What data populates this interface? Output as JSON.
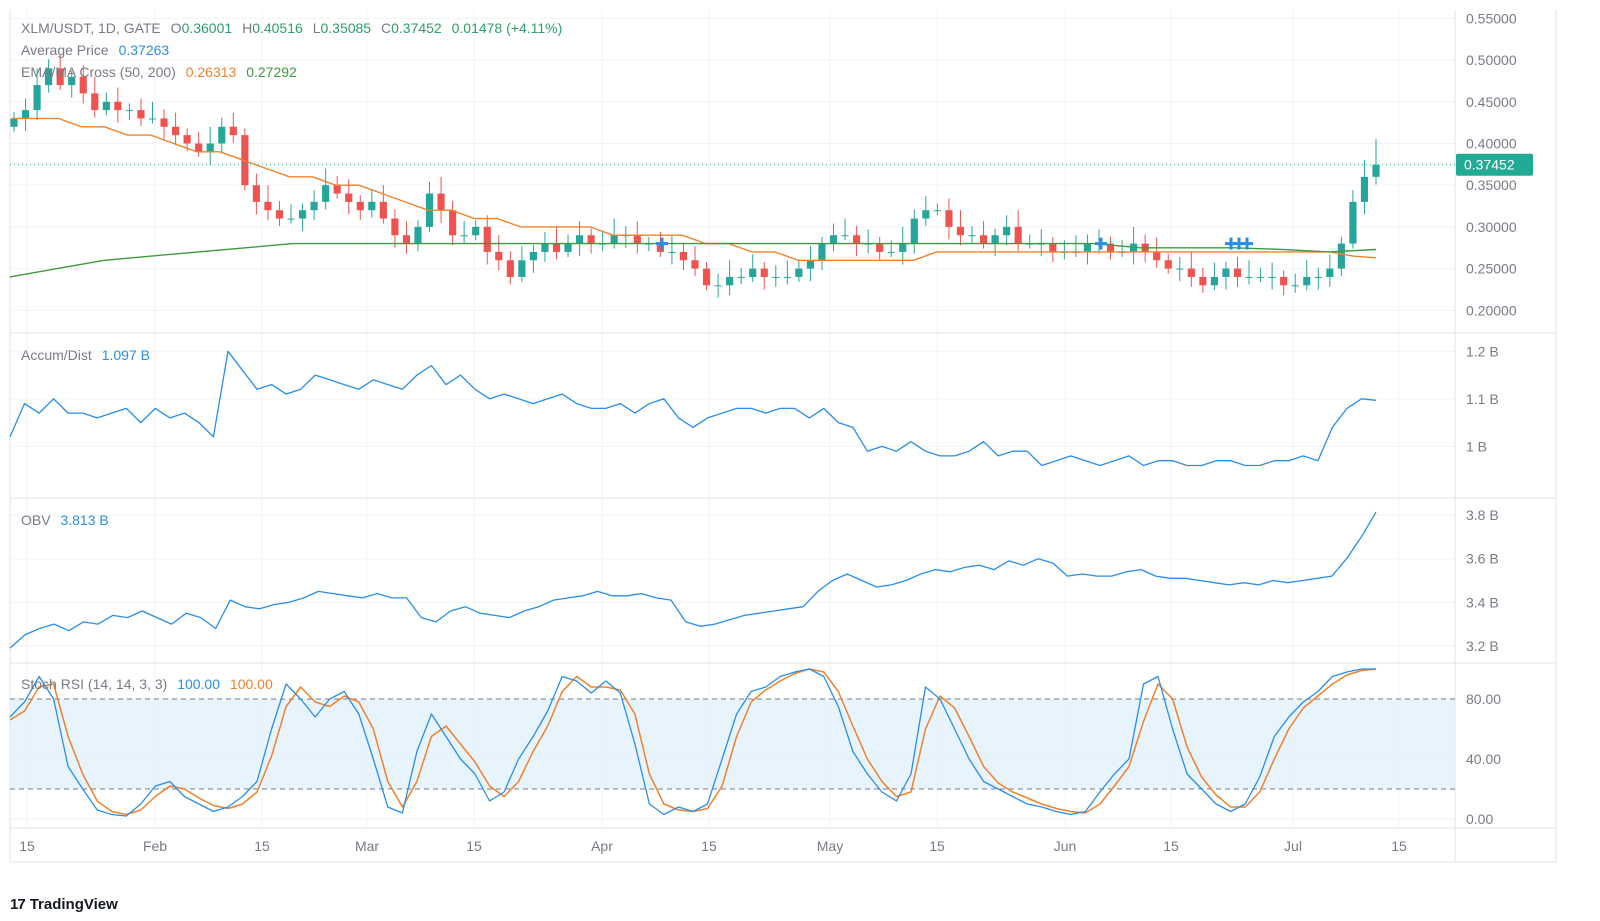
{
  "legend": {
    "title": "XLM/USDT, 1D, GATE",
    "open_label": "O",
    "open": "0.36001",
    "high_label": "H",
    "high": "0.40516",
    "low_label": "L",
    "low": "0.35085",
    "close_label": "C",
    "close": "0.37452",
    "change": "0.01478 (+4.11%)",
    "avg_label": "Average Price",
    "avg_value": "0.37263",
    "ma_label": "EMA/MA Cross (50, 200)",
    "ma_fast": "0.26313",
    "ma_slow": "0.27292"
  },
  "ad_legend": {
    "label": "Accum/Dist",
    "value": "1.097 B"
  },
  "obv_legend": {
    "label": "OBV",
    "value": "3.813 B"
  },
  "stoch_legend": {
    "label": "Stoch RSI (14, 14, 3, 3)",
    "k": "100.00",
    "d": "100.00"
  },
  "branding": {
    "logo_mark": "17",
    "name": "TradingView"
  },
  "colors": {
    "up": "#26a69a",
    "down": "#ef5350",
    "ma_fast": "#f0822d",
    "ma_slow": "#3e9a3e",
    "indicator": "#2a8ee8",
    "stoch_d": "#f0822d",
    "price_tag": "#22ab94"
  },
  "chart_data": [
    {
      "type": "candlestick",
      "pane": "price",
      "ylim": [
        0.18,
        0.56
      ],
      "yticks": [
        "0.55000",
        "0.50000",
        "0.45000",
        "0.40000",
        "0.35000",
        "0.30000",
        "0.25000",
        "0.20000"
      ],
      "last_price_label": "0.37452",
      "xticks": [
        "15",
        "Feb",
        "15",
        "Mar",
        "15",
        "Apr",
        "15",
        "May",
        "15",
        "Jun",
        "15",
        "Jul",
        "15"
      ],
      "close": [
        0.43,
        0.44,
        0.47,
        0.49,
        0.47,
        0.48,
        0.46,
        0.44,
        0.45,
        0.44,
        0.44,
        0.43,
        0.43,
        0.42,
        0.41,
        0.4,
        0.39,
        0.4,
        0.42,
        0.41,
        0.35,
        0.33,
        0.32,
        0.31,
        0.31,
        0.32,
        0.33,
        0.35,
        0.34,
        0.33,
        0.32,
        0.33,
        0.31,
        0.29,
        0.28,
        0.3,
        0.34,
        0.32,
        0.29,
        0.29,
        0.3,
        0.27,
        0.26,
        0.24,
        0.26,
        0.27,
        0.28,
        0.27,
        0.28,
        0.29,
        0.28,
        0.28,
        0.29,
        0.29,
        0.28,
        0.28,
        0.27,
        0.27,
        0.26,
        0.25,
        0.23,
        0.23,
        0.24,
        0.24,
        0.25,
        0.24,
        0.24,
        0.24,
        0.25,
        0.26,
        0.28,
        0.29,
        0.29,
        0.28,
        0.28,
        0.27,
        0.27,
        0.28,
        0.31,
        0.32,
        0.32,
        0.3,
        0.29,
        0.29,
        0.28,
        0.29,
        0.3,
        0.28,
        0.28,
        0.28,
        0.27,
        0.27,
        0.27,
        0.28,
        0.28,
        0.27,
        0.27,
        0.28,
        0.27,
        0.26,
        0.25,
        0.25,
        0.24,
        0.23,
        0.24,
        0.25,
        0.24,
        0.24,
        0.24,
        0.24,
        0.23,
        0.23,
        0.24,
        0.24,
        0.25,
        0.28,
        0.33,
        0.36,
        0.37452
      ],
      "ma50": [
        0.43,
        0.43,
        0.43,
        0.42,
        0.42,
        0.41,
        0.41,
        0.4,
        0.39,
        0.39,
        0.38,
        0.37,
        0.36,
        0.36,
        0.35,
        0.35,
        0.34,
        0.33,
        0.32,
        0.32,
        0.31,
        0.31,
        0.3,
        0.3,
        0.3,
        0.3,
        0.29,
        0.29,
        0.29,
        0.29,
        0.28,
        0.28,
        0.27,
        0.27,
        0.26,
        0.26,
        0.26,
        0.26,
        0.26,
        0.26,
        0.27,
        0.27,
        0.27,
        0.27,
        0.27,
        0.27,
        0.27,
        0.27,
        0.27,
        0.27,
        0.27,
        0.27,
        0.27,
        0.27,
        0.27,
        0.27,
        0.27,
        0.27,
        0.265,
        0.263
      ],
      "ma200": [
        0.24,
        0.25,
        0.26,
        0.265,
        0.27,
        0.275,
        0.28,
        0.28,
        0.28,
        0.28,
        0.28,
        0.28,
        0.28,
        0.28,
        0.28,
        0.28,
        0.28,
        0.28,
        0.28,
        0.28,
        0.28,
        0.28,
        0.28,
        0.28,
        0.275,
        0.275,
        0.275,
        0.273,
        0.27,
        0.27292
      ],
      "cross_marks": [
        "Apr 8",
        "Jun 5",
        "Jun 23"
      ]
    },
    {
      "type": "line",
      "pane": "accum_dist",
      "series": [
        {
          "name": "Accum/Dist",
          "values": [
            1.02,
            1.09,
            1.07,
            1.1,
            1.07,
            1.07,
            1.06,
            1.07,
            1.08,
            1.05,
            1.08,
            1.06,
            1.07,
            1.05,
            1.02,
            1.2,
            1.16,
            1.12,
            1.13,
            1.11,
            1.12,
            1.15,
            1.14,
            1.13,
            1.12,
            1.14,
            1.13,
            1.12,
            1.15,
            1.17,
            1.13,
            1.15,
            1.12,
            1.1,
            1.11,
            1.1,
            1.09,
            1.1,
            1.11,
            1.09,
            1.08,
            1.08,
            1.09,
            1.07,
            1.09,
            1.1,
            1.06,
            1.04,
            1.06,
            1.07,
            1.08,
            1.08,
            1.07,
            1.08,
            1.08,
            1.06,
            1.08,
            1.05,
            1.04,
            0.99,
            1.0,
            0.99,
            1.01,
            0.99,
            0.98,
            0.98,
            0.99,
            1.01,
            0.98,
            0.99,
            0.99,
            0.96,
            0.97,
            0.98,
            0.97,
            0.96,
            0.97,
            0.98,
            0.96,
            0.97,
            0.97,
            0.96,
            0.96,
            0.97,
            0.97,
            0.96,
            0.96,
            0.97,
            0.97,
            0.98,
            0.97,
            1.04,
            1.08,
            1.1,
            1.097
          ]
        }
      ],
      "ylim": [
        0.9,
        1.23
      ],
      "yticks": [
        "1.2 B",
        "1.1 B",
        "1 B"
      ]
    },
    {
      "type": "line",
      "pane": "obv",
      "series": [
        {
          "name": "OBV",
          "values": [
            3.19,
            3.25,
            3.28,
            3.3,
            3.27,
            3.31,
            3.3,
            3.34,
            3.33,
            3.36,
            3.33,
            3.3,
            3.35,
            3.33,
            3.28,
            3.41,
            3.38,
            3.37,
            3.39,
            3.4,
            3.42,
            3.45,
            3.44,
            3.43,
            3.42,
            3.44,
            3.42,
            3.42,
            3.33,
            3.31,
            3.36,
            3.38,
            3.35,
            3.34,
            3.33,
            3.36,
            3.38,
            3.41,
            3.42,
            3.43,
            3.45,
            3.43,
            3.43,
            3.44,
            3.42,
            3.41,
            3.31,
            3.29,
            3.3,
            3.32,
            3.34,
            3.35,
            3.36,
            3.37,
            3.38,
            3.45,
            3.5,
            3.53,
            3.5,
            3.47,
            3.48,
            3.5,
            3.53,
            3.55,
            3.54,
            3.56,
            3.57,
            3.55,
            3.59,
            3.57,
            3.6,
            3.58,
            3.52,
            3.53,
            3.52,
            3.52,
            3.54,
            3.55,
            3.52,
            3.51,
            3.51,
            3.5,
            3.49,
            3.48,
            3.49,
            3.48,
            3.5,
            3.49,
            3.5,
            3.51,
            3.52,
            3.6,
            3.7,
            3.813
          ]
        }
      ],
      "ylim": [
        3.14,
        3.86
      ],
      "yticks": [
        "3.8 B",
        "3.6 B",
        "3.4 B",
        "3.2 B"
      ]
    },
    {
      "type": "line",
      "pane": "stoch_rsi",
      "series": [
        {
          "name": "K",
          "values": [
            68,
            78,
            95,
            80,
            35,
            20,
            6,
            3,
            2,
            10,
            22,
            25,
            15,
            10,
            5,
            8,
            15,
            25,
            60,
            90,
            80,
            68,
            80,
            85,
            70,
            40,
            8,
            4,
            45,
            70,
            55,
            40,
            30,
            12,
            18,
            40,
            55,
            72,
            95,
            92,
            84,
            92,
            84,
            50,
            10,
            3,
            8,
            5,
            10,
            40,
            70,
            85,
            88,
            95,
            98,
            100,
            95,
            75,
            45,
            30,
            18,
            12,
            30,
            88,
            80,
            60,
            40,
            25,
            20,
            15,
            10,
            8,
            5,
            3,
            5,
            18,
            30,
            40,
            90,
            95,
            60,
            30,
            20,
            10,
            5,
            10,
            28,
            55,
            68,
            78,
            85,
            95,
            98,
            100,
            100
          ]
        },
        {
          "name": "D",
          "values": [
            66,
            72,
            88,
            90,
            55,
            30,
            12,
            5,
            3,
            6,
            15,
            22,
            20,
            14,
            9,
            7,
            10,
            18,
            42,
            75,
            88,
            78,
            75,
            82,
            78,
            60,
            25,
            8,
            25,
            55,
            62,
            50,
            38,
            22,
            15,
            25,
            45,
            62,
            85,
            95,
            88,
            88,
            86,
            70,
            30,
            10,
            6,
            5,
            7,
            22,
            55,
            78,
            86,
            92,
            97,
            100,
            98,
            85,
            62,
            40,
            25,
            15,
            18,
            60,
            82,
            74,
            55,
            35,
            24,
            18,
            14,
            10,
            7,
            5,
            4,
            10,
            22,
            35,
            65,
            90,
            80,
            48,
            28,
            16,
            8,
            8,
            18,
            40,
            60,
            74,
            82,
            90,
            96,
            99,
            100
          ]
        }
      ],
      "ylim": [
        -6,
        104
      ],
      "yticks": [
        "80.00",
        "40.00",
        "0.00"
      ],
      "bands": [
        20,
        80
      ]
    }
  ]
}
